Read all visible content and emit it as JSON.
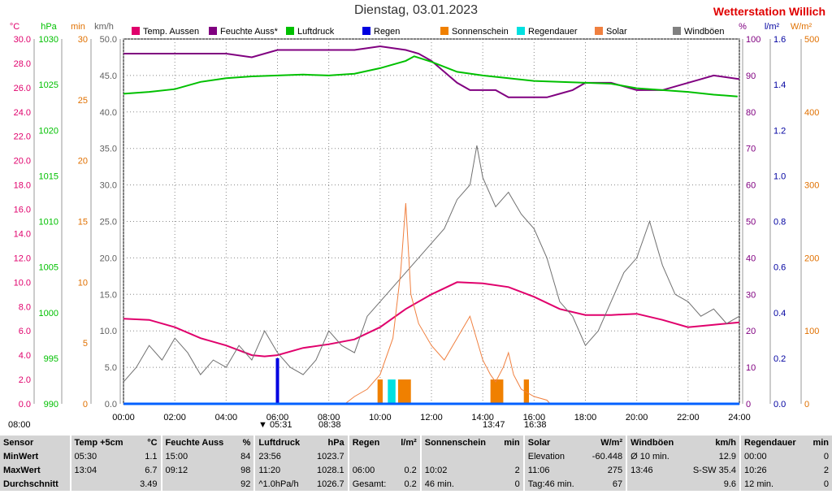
{
  "header": {
    "title": "Dienstag, 03.01.2023",
    "station": "Wetterstation Willich"
  },
  "chart_data": {
    "type": "line",
    "x_ticks": [
      "00:00",
      "02:00",
      "04:00",
      "06:00",
      "08:00",
      "10:00",
      "12:00",
      "14:00",
      "16:00",
      "18:00",
      "20:00",
      "22:00",
      "24:00"
    ],
    "axes": {
      "temp_c": {
        "unit": "°C",
        "ylim": [
          0,
          30
        ],
        "ticks": [
          "0.0",
          "2.0",
          "4.0",
          "6.0",
          "8.0",
          "10.0",
          "12.0",
          "14.0",
          "16.0",
          "18.0",
          "20.0",
          "22.0",
          "24.0",
          "26.0",
          "28.0",
          "30.0"
        ],
        "color": "#e0006c"
      },
      "pressure_hpa": {
        "unit": "hPa",
        "ylim": [
          990,
          1030
        ],
        "ticks": [
          "990",
          "995",
          "1000",
          "1005",
          "1010",
          "1015",
          "1020",
          "1025",
          "1030"
        ],
        "color": "#00c000"
      },
      "sunshine_min": {
        "unit": "min",
        "ylim": [
          0,
          30
        ],
        "ticks": [
          "0",
          "5",
          "10",
          "15",
          "20",
          "25",
          "30"
        ],
        "color": "#e07000"
      },
      "wind_kmh": {
        "unit": "km/h",
        "ylim": [
          0,
          50
        ],
        "ticks": [
          "0.0",
          "5.0",
          "10.0",
          "15.0",
          "20.0",
          "25.0",
          "30.0",
          "35.0",
          "40.0",
          "45.0",
          "50.0"
        ],
        "color": "#606060"
      },
      "humidity_pct": {
        "unit": "%",
        "ylim": [
          0,
          100
        ],
        "ticks": [
          "0",
          "10",
          "20",
          "30",
          "40",
          "50",
          "60",
          "70",
          "80",
          "90",
          "100"
        ],
        "color": "#800080"
      },
      "rain_lm2": {
        "unit": "l/m²",
        "ylim": [
          0,
          1.6
        ],
        "ticks": [
          "0.0",
          "0.2",
          "0.4",
          "0.6",
          "0.8",
          "1.0",
          "1.2",
          "1.4",
          "1.6"
        ],
        "color": "#0000a0"
      },
      "solar_wm2": {
        "unit": "W/m²",
        "ylim": [
          0,
          500
        ],
        "ticks": [
          "0",
          "100",
          "200",
          "300",
          "400",
          "500"
        ],
        "color": "#e07000"
      }
    },
    "legend": [
      {
        "name": "Temp. Aussen",
        "color": "#e0006c"
      },
      {
        "name": "Feuchte Auss*",
        "color": "#800080"
      },
      {
        "name": "Luftdruck",
        "color": "#00c000"
      },
      {
        "name": "Regen",
        "color": "#0000e0"
      },
      {
        "name": "Sonnenschein",
        "color": "#f08000"
      },
      {
        "name": "Regendauer",
        "color": "#00e0e0"
      },
      {
        "name": "Solar",
        "color": "#f08040"
      },
      {
        "name": "Windböen",
        "color": "#808080"
      }
    ],
    "series": [
      {
        "name": "Temp. Aussen",
        "axis": "temp_c",
        "x": [
          0,
          1,
          2,
          3,
          4,
          5,
          5.5,
          6,
          7,
          8,
          9,
          10,
          11,
          12,
          13,
          14,
          15,
          16,
          17,
          18,
          19,
          20,
          21,
          22,
          23,
          24
        ],
        "values": [
          7.0,
          6.9,
          6.3,
          5.4,
          4.8,
          4.0,
          3.9,
          4.0,
          4.6,
          4.9,
          5.3,
          6.3,
          7.8,
          9.0,
          10.0,
          9.9,
          9.6,
          8.8,
          7.8,
          7.3,
          7.3,
          7.4,
          6.9,
          6.3,
          6.5,
          6.7
        ]
      },
      {
        "name": "Feuchte Auss*",
        "axis": "humidity_pct",
        "x": [
          0,
          2,
          4,
          5,
          6,
          8,
          9,
          10,
          11,
          11.5,
          12,
          12.5,
          13,
          13.5,
          14,
          14.5,
          15,
          16,
          16.5,
          17,
          17.5,
          18,
          19,
          20,
          21,
          22,
          22.5,
          23,
          24
        ],
        "values": [
          96,
          96,
          96,
          95,
          97,
          97,
          97,
          98,
          97,
          96,
          94,
          91,
          88,
          86,
          86,
          86,
          84,
          84,
          84,
          85,
          86,
          88,
          88,
          86,
          86,
          88,
          89,
          90,
          89
        ]
      },
      {
        "name": "Luftdruck",
        "axis": "pressure_hpa",
        "x": [
          0,
          1,
          2,
          3,
          4,
          5,
          6,
          7,
          8,
          9,
          10,
          11,
          11.33,
          12,
          13,
          14,
          15,
          16,
          17,
          18,
          19,
          20,
          21,
          22,
          23,
          23.93
        ],
        "values": [
          1024.0,
          1024.2,
          1024.5,
          1025.3,
          1025.7,
          1025.9,
          1026.0,
          1026.1,
          1026.0,
          1026.2,
          1026.8,
          1027.6,
          1028.1,
          1027.5,
          1026.4,
          1026.0,
          1025.7,
          1025.4,
          1025.3,
          1025.2,
          1025.1,
          1024.6,
          1024.4,
          1024.2,
          1023.9,
          1023.7
        ]
      },
      {
        "name": "Windböen",
        "axis": "wind_kmh",
        "x": [
          0,
          0.5,
          1,
          1.5,
          2,
          2.5,
          3,
          3.5,
          4,
          4.5,
          5,
          5.5,
          6,
          6.5,
          7,
          7.5,
          8,
          8.5,
          9,
          9.5,
          10,
          10.5,
          11,
          11.5,
          12,
          12.5,
          13,
          13.5,
          13.77,
          14,
          14.5,
          15,
          15.5,
          16,
          16.5,
          17,
          17.5,
          18,
          18.5,
          19,
          19.5,
          20,
          20.5,
          21,
          21.5,
          22,
          22.5,
          23,
          23.5,
          24
        ],
        "values": [
          3,
          5,
          8,
          6,
          9,
          7,
          4,
          6,
          5,
          8,
          6,
          10,
          7,
          5,
          4,
          6,
          10,
          8,
          7,
          12,
          14,
          16,
          18,
          20,
          22,
          24,
          28,
          30,
          35.4,
          31,
          27,
          29,
          26,
          24,
          20,
          14,
          12,
          8,
          10,
          14,
          18,
          20,
          25,
          19,
          15,
          14,
          12,
          13,
          11,
          12
        ]
      },
      {
        "name": "Solar",
        "axis": "solar_wm2",
        "x": [
          8.63,
          9,
          9.5,
          10,
          10.5,
          10.8,
          11,
          11.2,
          11.5,
          12,
          12.5,
          13,
          13.5,
          14,
          14.3,
          14.5,
          14.8,
          15,
          15.2,
          15.5,
          16,
          16.5,
          16.63
        ],
        "values": [
          0,
          10,
          20,
          40,
          90,
          180,
          275,
          150,
          110,
          80,
          60,
          90,
          120,
          60,
          40,
          30,
          50,
          70,
          40,
          20,
          10,
          5,
          0
        ]
      },
      {
        "name": "Regen",
        "axis": "rain_lm2",
        "x": [
          6.0
        ],
        "values": [
          0.2
        ]
      }
    ],
    "bars": {
      "Sonnenschein": [
        {
          "from": 9.9,
          "to": 10.1,
          "min": 2
        },
        {
          "from": 10.7,
          "to": 11.2,
          "min": 2
        },
        {
          "from": 14.3,
          "to": 14.8,
          "min": 2
        },
        {
          "from": 15.6,
          "to": 15.8,
          "min": 2
        }
      ],
      "Regendauer": [
        {
          "from": 10.3,
          "to": 10.6,
          "min": 2
        }
      ]
    },
    "events": {
      "sunrise_label": "▼ 05:31",
      "daylight_start": "08:38",
      "solar_noon": "13:47",
      "daylight_end": "16:38",
      "left_time": "08:00"
    }
  },
  "stats": {
    "rows": [
      [
        "Sensor",
        "Temp +5cm",
        "°C",
        "Feuchte Auss",
        "%",
        "Luftdruck",
        "hPa",
        "Regen",
        "l/m²",
        "Sonnenschein",
        "min",
        "Solar",
        "W/m²",
        "Windböen",
        "km/h",
        "Regendauer",
        "min"
      ],
      [
        "MinWert",
        "05:30",
        "1.1",
        "15:00",
        "84",
        "23:56",
        "1023.7",
        "",
        "",
        "",
        "",
        "Elevation",
        "-60.448",
        "Ø 10 min.",
        "12.9",
        "00:00",
        "0"
      ],
      [
        "MaxWert",
        "13:04",
        "6.7",
        "09:12",
        "98",
        "11:20",
        "1028.1",
        "06:00",
        "0.2",
        "10:02",
        "2",
        "11:06",
        "275",
        "13:46",
        "S-SW 35.4",
        "10:26",
        "2"
      ],
      [
        "Durchschnitt",
        "",
        "3.49",
        "",
        "92",
        "^1.0hPa/h",
        "1026.7",
        "Gesamt:",
        "0.2",
        "46 min.",
        "0",
        "Tag:46 min.",
        "67",
        "",
        "9.6",
        "12 min.",
        "0"
      ]
    ]
  }
}
